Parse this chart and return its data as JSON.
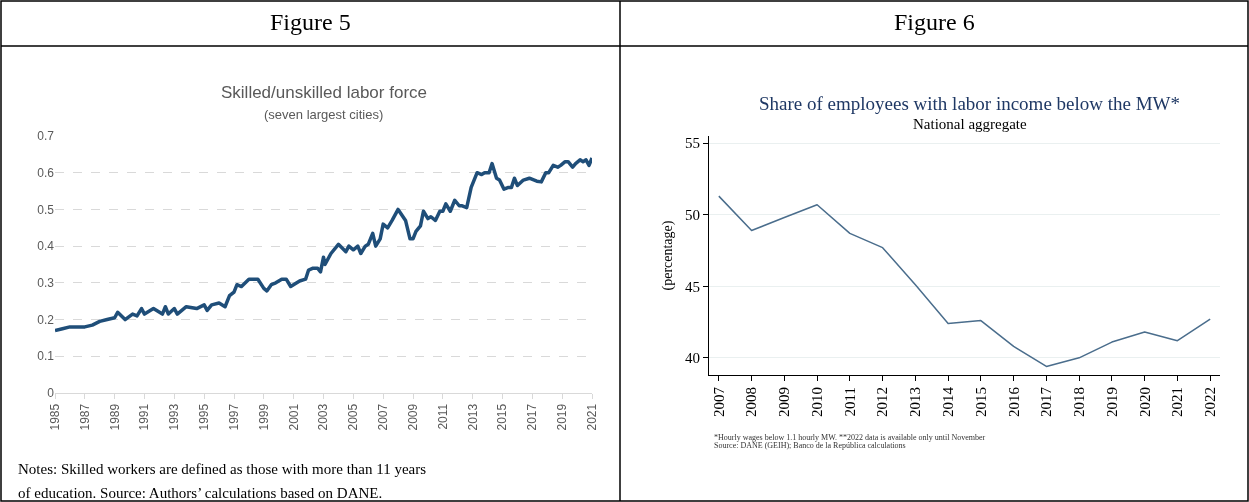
{
  "chart_data": [
    {
      "type": "line",
      "title": "Skilled/unskilled labor force",
      "subtitle": "(seven largest cities)",
      "annotations": [
        "Figure 5",
        "Notes: Skilled workers are defined as those with more than 11 years of education. Source: Authors’ calculations based on DANE."
      ],
      "series": [
        {
          "color": "#1f4e79",
          "x": [
            1985,
            1985.5,
            1986,
            1986.5,
            1987,
            1987.5,
            1988,
            1988.5,
            1989,
            1989.2,
            1989.7,
            1990.2,
            1990.5,
            1990.8,
            1991,
            1991.6,
            1992.2,
            1992.4,
            1992.6,
            1993,
            1993.2,
            1993.8,
            1994.5,
            1995,
            1995.2,
            1995.5,
            1996,
            1996.4,
            1996.7,
            1997,
            1997.2,
            1997.5,
            1998,
            1998.6,
            1999,
            1999.2,
            1999.5,
            1999.8,
            2000.2,
            2000.5,
            2000.8,
            2001.4,
            2001.8,
            2002,
            2002.3,
            2002.6,
            2002.8,
            2003.0,
            2003.1,
            2003.5,
            2004.0,
            2004.5,
            2004.7,
            2005.0,
            2005.3,
            2005.5,
            2005.8,
            2006.0,
            2006.3,
            2006.5,
            2006.8,
            2007.0,
            2007.3,
            2007.6,
            2008.0,
            2008.5,
            2008.8,
            2009.0,
            2009.2,
            2009.5,
            2009.7,
            2010.0,
            2010.2,
            2010.5,
            2010.8,
            2011.0,
            2011.2,
            2011.5,
            2011.8,
            2012.1,
            2012.3,
            2012.6,
            2012.9,
            2013.3,
            2013.6,
            2013.8,
            2014.1,
            2014.3,
            2014.6,
            2014.8,
            2015.1,
            2015.4,
            2015.6,
            2015.8,
            2016.0,
            2016.4,
            2016.8,
            2017.3,
            2017.6,
            2017.9,
            2018.1,
            2018.4,
            2018.7,
            2018.9,
            2019.2,
            2019.4,
            2019.7,
            2019.9,
            2020.2,
            2020.4,
            2020.6,
            2020.8,
            2021.0
          ],
          "values": [
            0.17,
            0.175,
            0.18,
            0.18,
            0.18,
            0.185,
            0.195,
            0.2,
            0.205,
            0.22,
            0.2,
            0.215,
            0.21,
            0.23,
            0.215,
            0.23,
            0.215,
            0.235,
            0.215,
            0.23,
            0.215,
            0.235,
            0.23,
            0.24,
            0.225,
            0.24,
            0.245,
            0.235,
            0.265,
            0.275,
            0.295,
            0.29,
            0.31,
            0.31,
            0.285,
            0.278,
            0.295,
            0.3,
            0.31,
            0.31,
            0.29,
            0.305,
            0.31,
            0.335,
            0.34,
            0.34,
            0.33,
            0.37,
            0.35,
            0.38,
            0.405,
            0.385,
            0.4,
            0.39,
            0.4,
            0.38,
            0.4,
            0.405,
            0.435,
            0.4,
            0.42,
            0.46,
            0.45,
            0.47,
            0.5,
            0.47,
            0.42,
            0.42,
            0.44,
            0.455,
            0.495,
            0.475,
            0.48,
            0.47,
            0.495,
            0.495,
            0.515,
            0.495,
            0.525,
            0.51,
            0.51,
            0.505,
            0.56,
            0.6,
            0.595,
            0.6,
            0.6,
            0.625,
            0.585,
            0.58,
            0.555,
            0.56,
            0.56,
            0.585,
            0.565,
            0.58,
            0.585,
            0.577,
            0.575,
            0.6,
            0.6,
            0.62,
            0.615,
            0.62,
            0.63,
            0.63,
            0.615,
            0.625,
            0.635,
            0.63,
            0.635,
            0.62,
            0.64
          ]
        }
      ],
      "xlim": [
        1985,
        2021
      ],
      "xticks": [
        1985,
        1987,
        1989,
        1991,
        1993,
        1995,
        1997,
        1999,
        2001,
        2003,
        2005,
        2007,
        2009,
        2011,
        2013,
        2015,
        2017,
        2019,
        2021
      ],
      "ylim": [
        0,
        0.7
      ],
      "yticks": [
        0,
        0.1,
        0.2,
        0.3,
        0.4,
        0.5,
        0.6,
        0.7
      ],
      "grid": "y",
      "line_style": "solid"
    },
    {
      "type": "line",
      "title": "Share of employees with labor income below the MW*",
      "subtitle": "National aggregate",
      "ylabel": "(percentage)",
      "annotations": [
        "Figure 6",
        "*Hourly wages below 1.1 hourly MW. **2022 data is available only until November",
        "Source: DANE (GEIH); Banco de la República calculations"
      ],
      "series": [
        {
          "color": "#4a6d8c",
          "x": [
            2007,
            2008,
            2009,
            2010,
            2011,
            2012,
            2013,
            2014,
            2015,
            2016,
            2017,
            2018,
            2019,
            2020,
            2021,
            2022
          ],
          "values": [
            51.3,
            48.9,
            49.8,
            50.7,
            48.7,
            47.7,
            45.1,
            42.4,
            42.6,
            40.8,
            39.4,
            40.0,
            41.1,
            41.8,
            41.2,
            42.7
          ]
        }
      ],
      "xlim": [
        2006.7,
        2022.3
      ],
      "xticks": [
        2007,
        2008,
        2009,
        2010,
        2011,
        2012,
        2013,
        2014,
        2015,
        2016,
        2017,
        2018,
        2019,
        2020,
        2021,
        2022
      ],
      "ylim": [
        38.8,
        55.5
      ],
      "yticks": [
        40,
        45,
        50,
        55
      ],
      "grid": "y",
      "line_style": "solid"
    }
  ]
}
